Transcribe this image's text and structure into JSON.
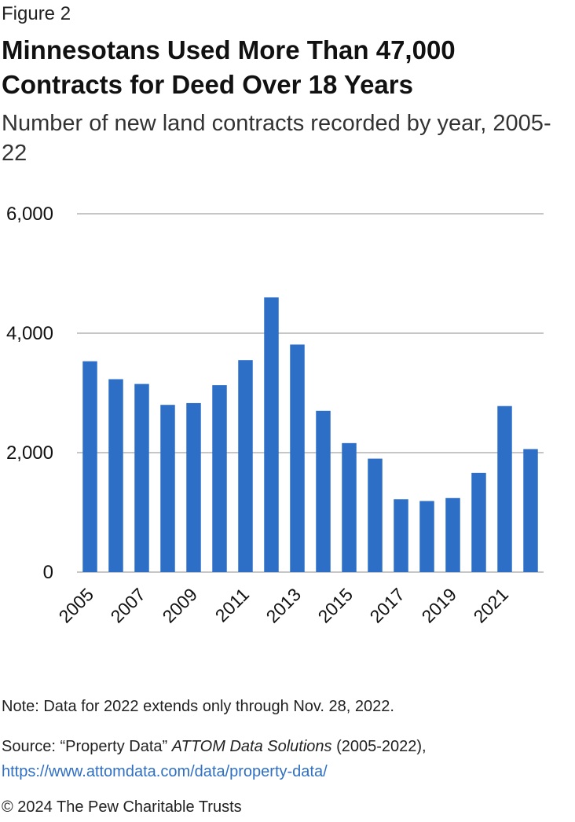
{
  "figure_label": "Figure 2",
  "colors": {
    "bar": "#2d6fc6",
    "grid": "#b3b3b3",
    "text": "#111111",
    "link": "#2f6fc4"
  },
  "chart_data": {
    "type": "bar",
    "title": "Minnesotans Used More Than 47,000 Contracts for Deed Over 18 Years",
    "subtitle": "Number of new land contracts recorded by year, 2005-22",
    "xlabel": "",
    "ylabel": "",
    "ylim": [
      0,
      6000
    ],
    "yticks": [
      0,
      2000,
      4000,
      6000
    ],
    "ytick_labels": [
      "0",
      "2,000",
      "4,000",
      "6,000"
    ],
    "categories": [
      "2005",
      "2006",
      "2007",
      "2008",
      "2009",
      "2010",
      "2011",
      "2012",
      "2013",
      "2014",
      "2015",
      "2016",
      "2017",
      "2018",
      "2019",
      "2020",
      "2021",
      "2022"
    ],
    "xtick_labels": [
      "2005",
      "2007",
      "2009",
      "2011",
      "2013",
      "2015",
      "2017",
      "2019",
      "2021"
    ],
    "values": [
      3530,
      3230,
      3150,
      2800,
      2830,
      3130,
      3550,
      4600,
      3810,
      2700,
      2160,
      1900,
      1220,
      1190,
      1240,
      1660,
      2780,
      2060
    ],
    "grid": true,
    "legend": "none"
  },
  "note": "Note: Data for 2022 extends only through Nov. 28, 2022.",
  "source": {
    "prefix": "Source: “Property Data” ",
    "publication": "ATTOM Data Solutions",
    "years": " (2005-2022), ",
    "link": "https://www.attomdata.com/data/property-data/"
  },
  "copyright": "© 2024 The Pew Charitable Trusts"
}
